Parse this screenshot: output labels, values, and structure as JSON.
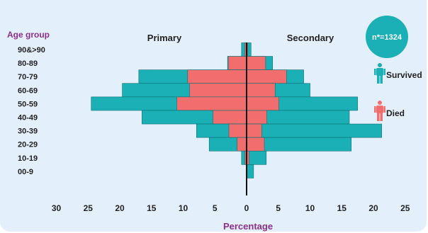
{
  "chart_data": {
    "type": "bar",
    "ylabel": "Age group",
    "xlabel": "Percentage",
    "left_panel_label": "Primary",
    "right_panel_label": "Secondary",
    "note": "n*=1324",
    "categories": [
      "90&>90",
      "80-89",
      "70-79",
      "60-69",
      "50-59",
      "40-49",
      "30-39",
      "20-29",
      "10-19",
      "00-9"
    ],
    "primary": {
      "survived_total": [
        0.8,
        3.0,
        17.0,
        19.6,
        24.5,
        16.5,
        7.9,
        5.9,
        0.8,
        0.0
      ],
      "died": [
        0.3,
        2.9,
        9.3,
        9.0,
        11.0,
        5.3,
        2.8,
        1.5,
        0.3,
        0.0
      ]
    },
    "secondary": {
      "survived_total": [
        0.7,
        4.1,
        9.0,
        10.0,
        17.5,
        16.2,
        21.3,
        16.5,
        3.1,
        1.1
      ],
      "died": [
        0.2,
        3.0,
        6.3,
        4.5,
        5.1,
        3.2,
        2.4,
        2.8,
        0.4,
        0.1
      ]
    },
    "series": [
      {
        "name": "Survived",
        "color": "#1ab0b5"
      },
      {
        "name": "Died",
        "color": "#f26d6d"
      }
    ],
    "x_ticks": [
      "30",
      "25",
      "20",
      "15",
      "10",
      "5",
      "0",
      "5",
      "10",
      "15",
      "20",
      "25"
    ],
    "xlim": [
      -30,
      25
    ],
    "legend_position": "right"
  }
}
